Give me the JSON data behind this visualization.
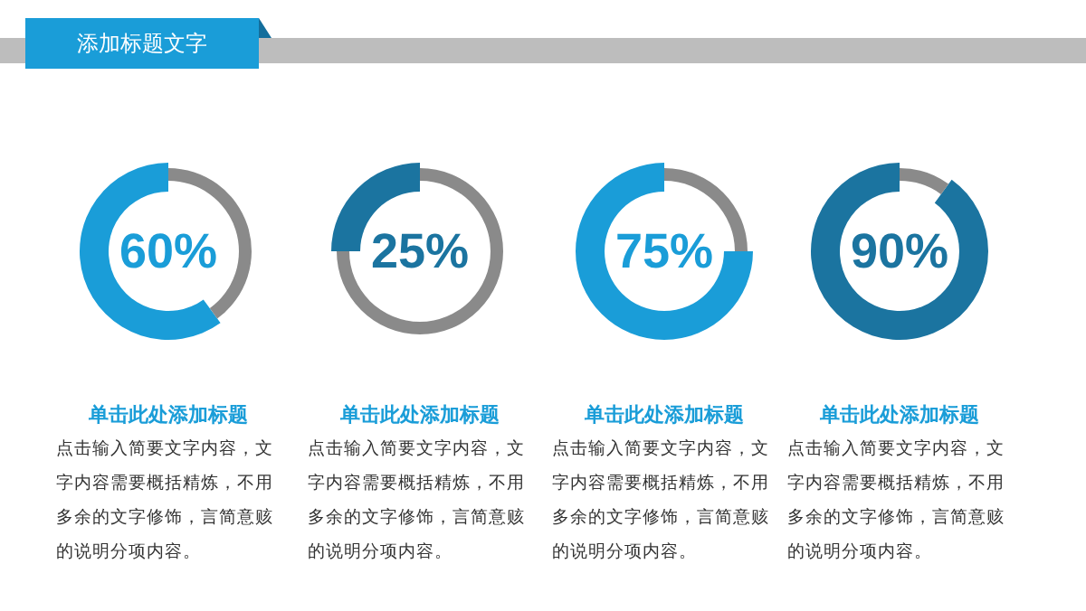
{
  "chart_data": [
    {
      "type": "other",
      "title": "添加标题文字"
    },
    {
      "type": "donut",
      "title": "单击此处添加标题",
      "categories": [
        null,
        null
      ],
      "values": [
        60,
        40
      ],
      "colors": [
        "#1a9dd8",
        "#8a8a8a"
      ],
      "annotations": [
        "60%",
        "点击输入简要文字内容，文字内容需要概括精炼，不用多余的文字修饰，言简意赅的说明分项内容。"
      ]
    },
    {
      "type": "donut",
      "title": "单击此处添加标题",
      "categories": [
        null,
        null
      ],
      "values": [
        25,
        75
      ],
      "colors": [
        "#1b74a0",
        "#8a8a8a"
      ],
      "annotations": [
        "25%",
        "点击输入简要文字内容，文字内容需要概括精炼，不用多余的文字修饰，言简意赅的说明分项内容。"
      ]
    },
    {
      "type": "donut",
      "title": "单击此处添加标题",
      "categories": [
        null,
        null
      ],
      "values": [
        75,
        25
      ],
      "colors": [
        "#1a9dd8",
        "#8a8a8a"
      ],
      "annotations": [
        "75%",
        "点击输入简要文字内容，文字内容需要概括精炼，不用多余的文字修饰，言简意赅的说明分项内容。"
      ]
    },
    {
      "type": "donut",
      "title": "单击此处添加标题",
      "categories": [
        null,
        null
      ],
      "values": [
        90,
        10
      ],
      "colors": [
        "#1b74a0",
        "#8a8a8a"
      ],
      "annotations": [
        "90%",
        "点击输入简要文字内容，文字内容需要概括精炼，不用多余的文字修饰，言简意赅的说明分项内容。"
      ]
    }
  ]
}
